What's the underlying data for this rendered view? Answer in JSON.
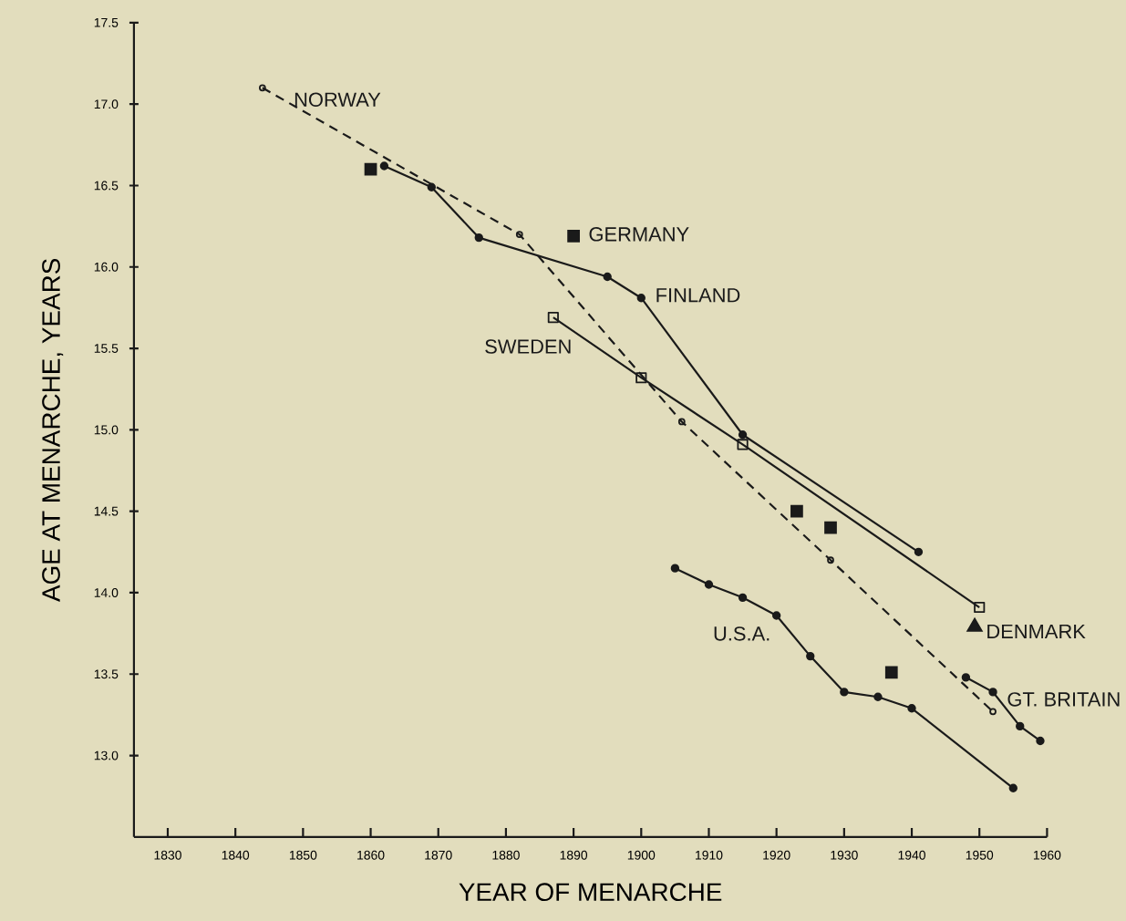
{
  "chart_data": {
    "type": "line",
    "xlabel": "YEAR OF MENARCHE",
    "ylabel": "AGE AT MENARCHE, YEARS",
    "xlim": [
      1825,
      1960
    ],
    "ylim": [
      12.5,
      17.5
    ],
    "xticks": [
      1830,
      1840,
      1850,
      1860,
      1870,
      1880,
      1890,
      1900,
      1910,
      1920,
      1930,
      1940,
      1950,
      1960
    ],
    "yticks": [
      {
        "value": 13,
        "label": "13.0"
      },
      {
        "value": 13.5,
        "label": "13.5"
      },
      {
        "value": 14,
        "label": "14.0"
      },
      {
        "value": 14.5,
        "label": "14.5"
      },
      {
        "value": 15,
        "label": "15.0"
      },
      {
        "value": 15.5,
        "label": "15.5"
      },
      {
        "value": 16,
        "label": "16.0"
      },
      {
        "value": 16.5,
        "label": "16.5"
      },
      {
        "value": 17,
        "label": "17.0"
      },
      {
        "value": 17.5,
        "label": "17.5"
      }
    ],
    "grid": false,
    "series": [
      {
        "name": "NORWAY",
        "color": "#1a1a1a",
        "line_style": "dashed",
        "marker": "circle",
        "x": [
          1844,
          1882,
          1906,
          1928,
          1952
        ],
        "values": [
          17.1,
          16.2,
          15.05,
          14.2,
          13.27
        ]
      },
      {
        "name": "FINLAND",
        "color": "#1a1a1a",
        "line_style": "solid",
        "marker": "circle",
        "x": [
          1862,
          1869,
          1876,
          1895,
          1900,
          1915,
          1941
        ],
        "values": [
          16.62,
          16.49,
          16.18,
          15.94,
          15.81,
          14.97,
          14.25
        ]
      },
      {
        "name": "SWEDEN",
        "color": "#1a1a1a",
        "line_style": "solid",
        "marker": "square",
        "x": [
          1887,
          1900,
          1915,
          1950
        ],
        "values": [
          15.69,
          15.32,
          14.91,
          13.91
        ]
      },
      {
        "name": "GERMANY",
        "type": "scatter",
        "color": "#1a1a1a",
        "marker": "square",
        "x": [
          1860,
          1890,
          1923,
          1928,
          1937
        ],
        "values": [
          16.6,
          16.19,
          14.5,
          14.4,
          13.51
        ]
      },
      {
        "name": "DENMARK",
        "type": "scatter",
        "color": "#1a1a1a",
        "marker": "triangle",
        "x": [
          1949.3
        ],
        "values": [
          13.79
        ]
      },
      {
        "name": "U.S.A.",
        "color": "#1a1a1a",
        "line_style": "solid",
        "marker": "circle",
        "x": [
          1905,
          1910,
          1915,
          1920,
          1925,
          1930,
          1935,
          1940,
          1955
        ],
        "values": [
          14.15,
          14.05,
          13.97,
          13.86,
          13.61,
          13.39,
          13.36,
          13.29,
          12.8
        ]
      },
      {
        "name": "GT. BRITAIN",
        "color": "#1a1a1a",
        "line_style": "solid",
        "marker": "circle",
        "x": [
          1948,
          1952,
          1956,
          1959
        ],
        "values": [
          13.48,
          13.39,
          13.18,
          13.09
        ]
      }
    ]
  }
}
